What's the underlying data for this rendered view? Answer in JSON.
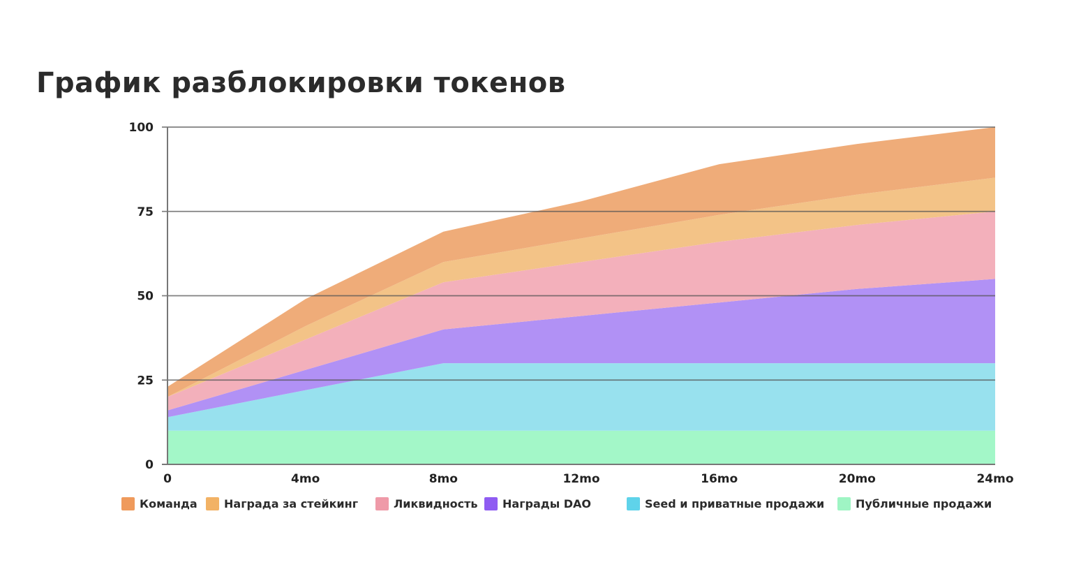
{
  "title": "График разблокировки токенов",
  "chart_data": {
    "type": "area",
    "stacked": true,
    "x": [
      "0",
      "4mo",
      "8mo",
      "12mo",
      "16mo",
      "20mo",
      "24mo"
    ],
    "ylim": [
      0,
      100
    ],
    "yticks": [
      "0",
      "25",
      "50",
      "75",
      "100"
    ],
    "grid": "horizontal",
    "legend_position": "bottom",
    "series": [
      {
        "name": "Публичные продажи",
        "color": "#a3f7c8",
        "values": [
          10,
          10,
          10,
          10,
          10,
          10,
          10
        ]
      },
      {
        "name": "Seed и приватные продажи",
        "color": "#98e1ee",
        "values": [
          4,
          12,
          20,
          20,
          20,
          20,
          20
        ]
      },
      {
        "name": "Награды DAO",
        "color": "#b191f5",
        "values": [
          2,
          6,
          10,
          14,
          18,
          22,
          25
        ]
      },
      {
        "name": "Ликвидность",
        "color": "#f3b0bb",
        "values": [
          4,
          9,
          14,
          16,
          18,
          19,
          20
        ]
      },
      {
        "name": "Награда за стейкинг",
        "color": "#f3c387",
        "values": [
          0,
          4,
          6,
          7,
          8,
          9,
          10
        ]
      },
      {
        "name": "Команда",
        "color": "#efac79",
        "values": [
          3,
          8,
          9,
          11,
          15,
          15,
          15
        ]
      }
    ]
  },
  "legend": [
    {
      "label": "Команда",
      "color": "#ef9a5c"
    },
    {
      "label": "Награда за стейкинг",
      "color": "#f2b265"
    },
    {
      "label": "Ликвидность",
      "color": "#ef9aa8"
    },
    {
      "label": "Награды DAO",
      "color": "#8f5cf2"
    },
    {
      "label": "Seed и приватные продажи",
      "color": "#5fd3ea"
    },
    {
      "label": "Публичные продажи",
      "color": "#9ff5c4"
    }
  ]
}
